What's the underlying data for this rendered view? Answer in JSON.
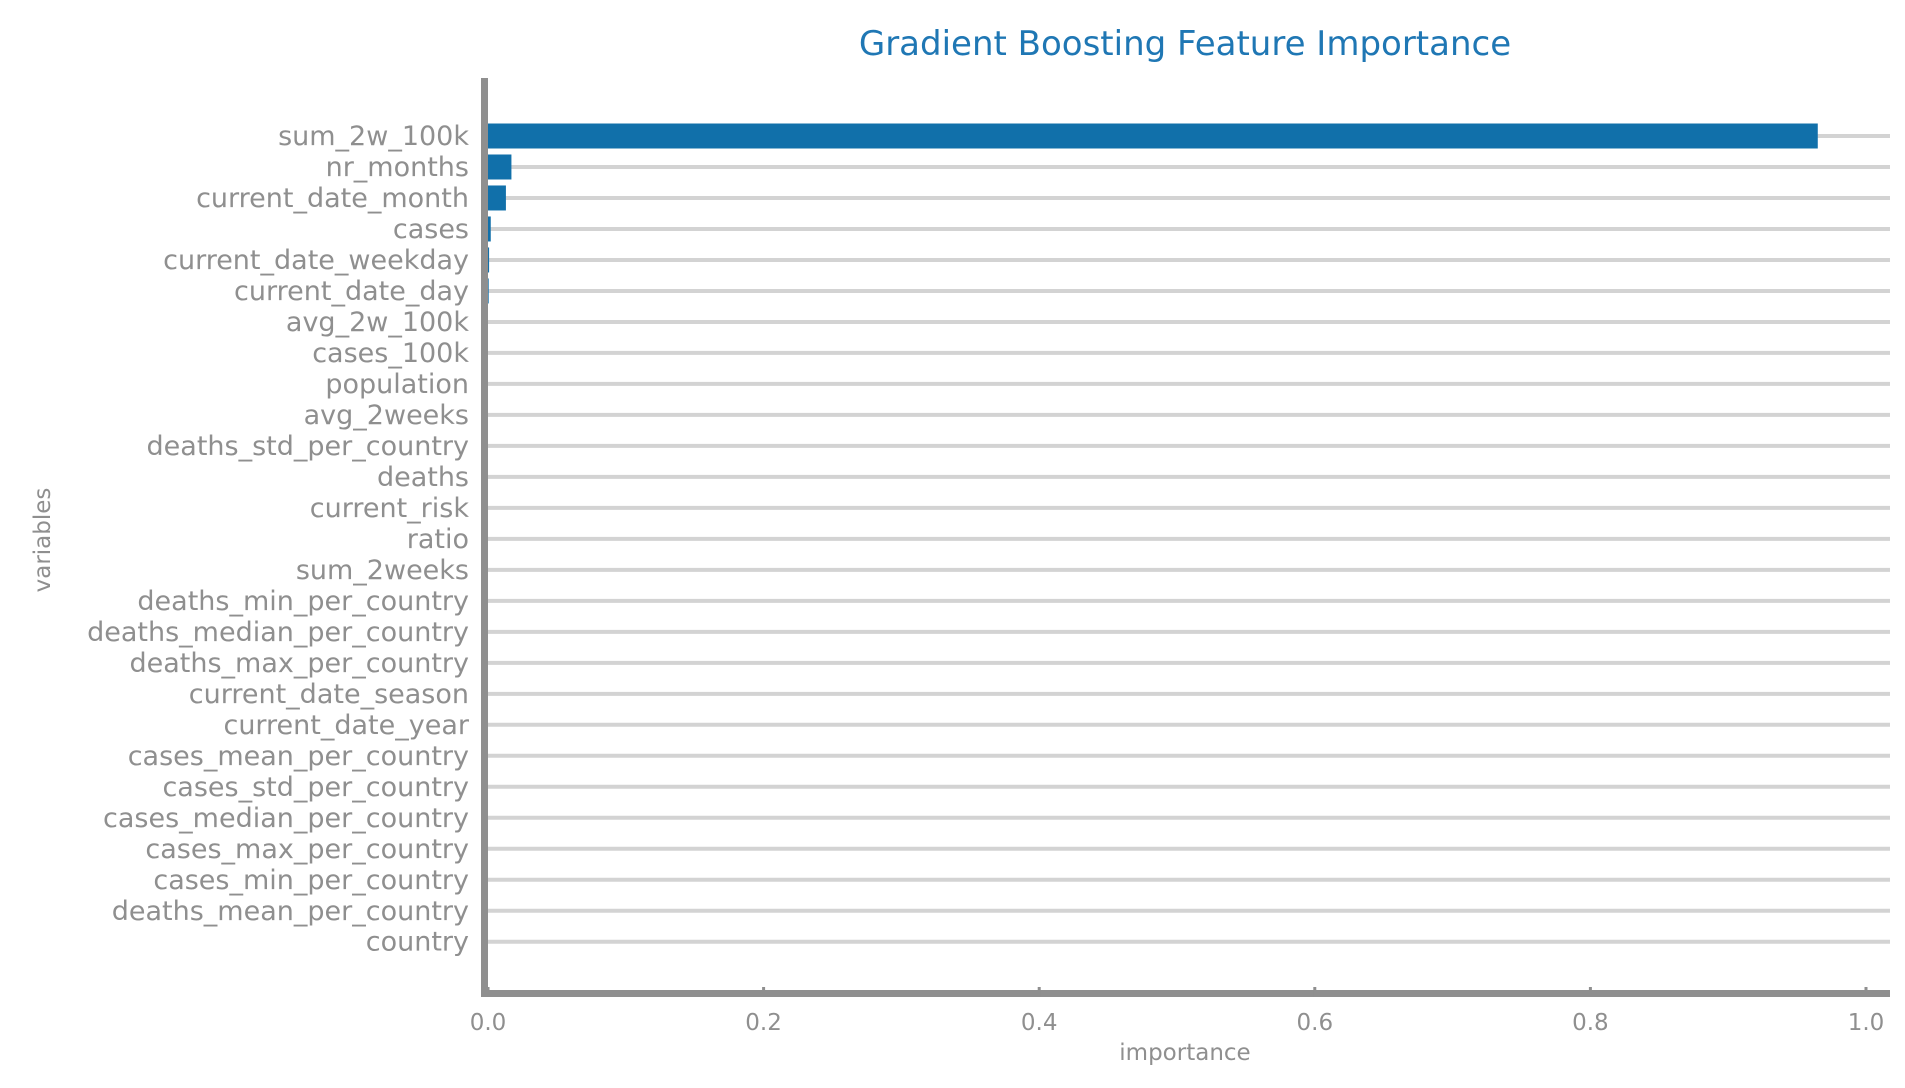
{
  "chart_data": {
    "type": "bar",
    "orientation": "horizontal",
    "title": "Gradient Boosting Feature Importance",
    "xlabel": "importance",
    "ylabel": "variables",
    "xlim": [
      0,
      1.0
    ],
    "xticks": [
      "0.0",
      "0.2",
      "0.4",
      "0.6",
      "0.8",
      "1.0"
    ],
    "grid": "horizontal",
    "bar_color": "#1170aa",
    "categories": [
      "sum_2w_100k",
      "nr_months",
      "current_date_month",
      "cases",
      "current_date_weekday",
      "current_date_day",
      "avg_2w_100k",
      "cases_100k",
      "population",
      "avg_2weeks",
      "deaths_std_per_country",
      "deaths",
      "current_risk",
      "ratio",
      "sum_2weeks",
      "deaths_min_per_country",
      "deaths_median_per_country",
      "deaths_max_per_country",
      "current_date_season",
      "current_date_year",
      "cases_mean_per_country",
      "cases_std_per_country",
      "cases_median_per_country",
      "cases_max_per_country",
      "cases_min_per_country",
      "deaths_mean_per_country",
      "country"
    ],
    "values": [
      0.965,
      0.017,
      0.013,
      0.002,
      0.0008,
      0.0005,
      0.0003,
      0.0002,
      0.0001,
      0.0001,
      0.0001,
      0.0001,
      0.0001,
      0.0,
      0.0,
      0.0,
      0.0,
      0.0,
      0.0,
      0.0,
      0.0,
      0.0,
      0.0,
      0.0,
      0.0,
      0.0,
      0.0
    ]
  }
}
